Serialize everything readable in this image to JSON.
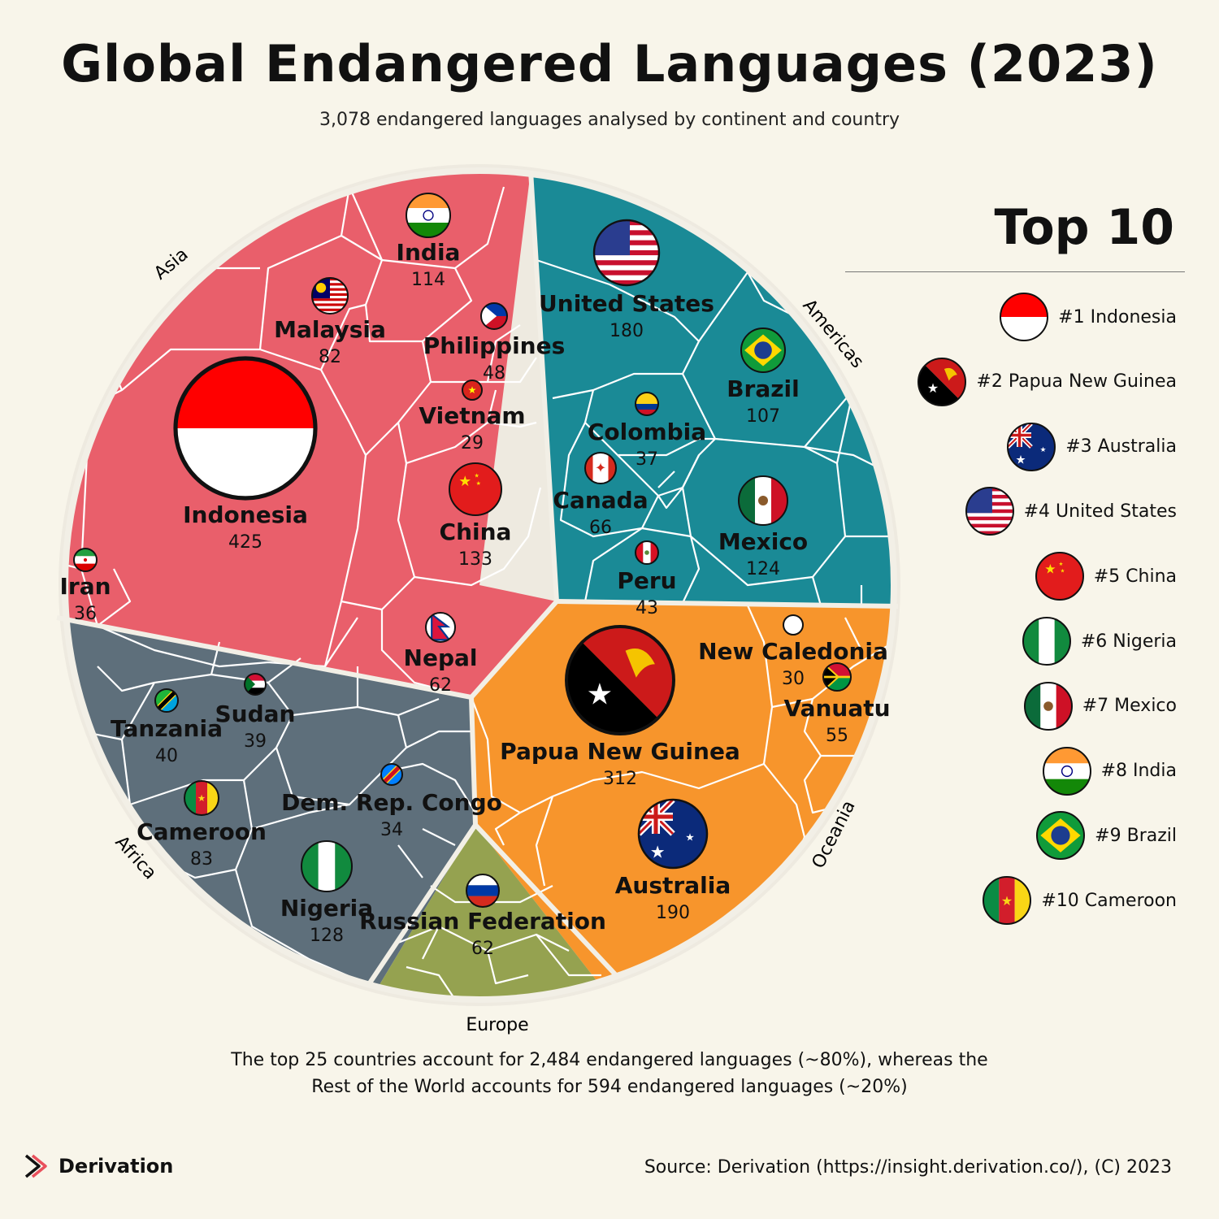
{
  "title": "Global Endangered Languages (2023)",
  "subtitle": "3,078 endangered languages analysed by continent and country",
  "top10": {
    "heading": "Top 10",
    "items": [
      {
        "label": "#1 Indonesia",
        "flag": "flag-indonesia"
      },
      {
        "label": "#2 Papua New Guinea",
        "flag": "flag-papua-new-guinea"
      },
      {
        "label": "#3 Australia",
        "flag": "flag-australia"
      },
      {
        "label": "#4 United States",
        "flag": "flag-united-states"
      },
      {
        "label": "#5 China",
        "flag": "flag-china"
      },
      {
        "label": "#6 Nigeria",
        "flag": "flag-nigeria"
      },
      {
        "label": "#7 Mexico",
        "flag": "flag-mexico"
      },
      {
        "label": "#8 India",
        "flag": "flag-india"
      },
      {
        "label": "#9 Brazil",
        "flag": "flag-brazil"
      },
      {
        "label": "#10 Cameroon",
        "flag": "flag-cameroon"
      }
    ]
  },
  "note": {
    "line1": "The top 25 countries account for 2,484 endangered languages (~80%), whereas the",
    "line2": "Rest of the World accounts for 594 endangered languages (~20%)"
  },
  "brand": "Derivation",
  "source": "Source: Derivation (https://insight.derivation.co/), (C) 2023",
  "colors": {
    "background": "#f8f5ea",
    "asia": "#e95f6b",
    "americas": "#1a8a96",
    "oceania": "#f7952c",
    "africa": "#5e6f7b",
    "europe": "#95a250"
  },
  "chart_data": {
    "type": "voronoi-treemap",
    "total": 3078,
    "continents": [
      {
        "name": "Asia",
        "color": "#e95f6b",
        "countries": [
          {
            "name": "Indonesia",
            "value": 425
          },
          {
            "name": "China",
            "value": 133
          },
          {
            "name": "India",
            "value": 114
          },
          {
            "name": "Malaysia",
            "value": 82
          },
          {
            "name": "Nepal",
            "value": 62
          },
          {
            "name": "Philippines",
            "value": 48
          },
          {
            "name": "Iran",
            "value": 36
          },
          {
            "name": "Vietnam",
            "value": 29
          }
        ]
      },
      {
        "name": "Americas",
        "color": "#1a8a96",
        "countries": [
          {
            "name": "United States",
            "value": 180
          },
          {
            "name": "Mexico",
            "value": 124
          },
          {
            "name": "Brazil",
            "value": 107
          },
          {
            "name": "Canada",
            "value": 66
          },
          {
            "name": "Peru",
            "value": 43
          },
          {
            "name": "Colombia",
            "value": 37
          }
        ]
      },
      {
        "name": "Oceania",
        "color": "#f7952c",
        "countries": [
          {
            "name": "Papua New Guinea",
            "value": 312
          },
          {
            "name": "Australia",
            "value": 190
          },
          {
            "name": "Vanuatu",
            "value": 55
          },
          {
            "name": "New Caledonia",
            "value": 30
          }
        ]
      },
      {
        "name": "Africa",
        "color": "#5e6f7b",
        "countries": [
          {
            "name": "Nigeria",
            "value": 128
          },
          {
            "name": "Cameroon",
            "value": 83
          },
          {
            "name": "Tanzania",
            "value": 40
          },
          {
            "name": "Sudan",
            "value": 39
          },
          {
            "name": "Dem. Rep. Congo",
            "value": 34
          }
        ]
      },
      {
        "name": "Europe",
        "color": "#95a250",
        "countries": [
          {
            "name": "Russian Federation",
            "value": 62
          }
        ]
      }
    ]
  }
}
